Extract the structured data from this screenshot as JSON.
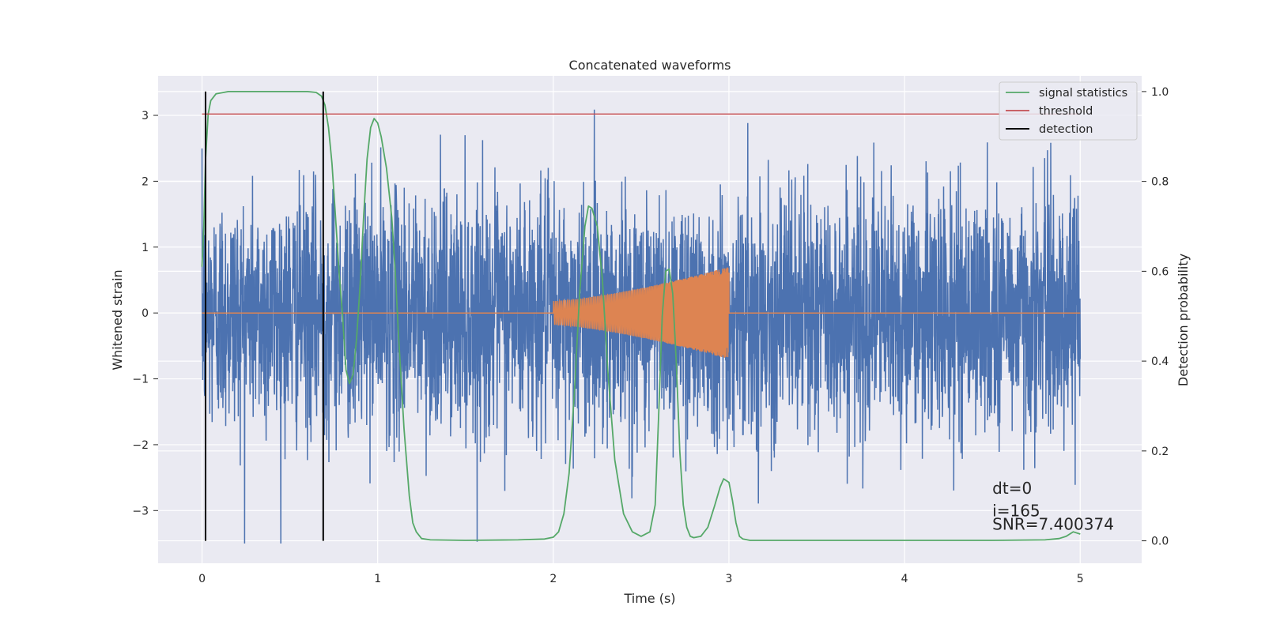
{
  "chart_data": {
    "type": "line",
    "title": "Concatenated waveforms",
    "xlabel": "Time (s)",
    "ylabel": "Whitened strain",
    "ylabel_right": "Detection probability",
    "xlim": [
      -0.25,
      5.35
    ],
    "ylim": [
      -3.8,
      3.6
    ],
    "ylim_right": [
      -0.05,
      1.035
    ],
    "xticks": [
      0,
      1,
      2,
      3,
      4,
      5
    ],
    "yticks": [
      -3,
      -2,
      -1,
      0,
      1,
      2,
      3
    ],
    "yticks_right": [
      0.0,
      0.2,
      0.4,
      0.6,
      0.8,
      1.0
    ],
    "xtick_labels": [
      "0",
      "1",
      "2",
      "3",
      "4",
      "5"
    ],
    "ytick_labels": [
      "−3",
      "−2",
      "−1",
      "0",
      "1",
      "2",
      "3"
    ],
    "ytick_labels_right": [
      "0.0",
      "0.2",
      "0.4",
      "0.6",
      "0.8",
      "1.0"
    ],
    "grid": true,
    "legend_position": "top-right",
    "colors": {
      "background": "#eaeaf2",
      "grid": "#ffffff",
      "noise": "#4c72b0",
      "signal": "#dd8452",
      "statistics": "#55a868",
      "threshold": "#c44e52",
      "detection": "#000000"
    },
    "series": [
      {
        "name": "",
        "axis": "left",
        "description_kind": "whitened noise",
        "x_range": [
          0,
          5
        ],
        "y_envelope": [
          -3.5,
          3.5
        ]
      },
      {
        "name": "",
        "axis": "left",
        "description_kind": "injected chirp",
        "x_start": 2.0,
        "x_merger": 3.0,
        "amplitude_start": 0.18,
        "amplitude_peak": 0.7
      },
      {
        "name": "signal statistics",
        "axis": "right",
        "x": [
          0,
          0.01,
          0.02,
          0.035,
          0.05,
          0.08,
          0.15,
          0.3,
          0.5,
          0.6,
          0.65,
          0.68,
          0.7,
          0.72,
          0.74,
          0.76,
          0.78,
          0.8,
          0.82,
          0.84,
          0.86,
          0.88,
          0.9,
          0.92,
          0.94,
          0.96,
          0.98,
          1.0,
          1.02,
          1.05,
          1.08,
          1.1,
          1.12,
          1.15,
          1.18,
          1.2,
          1.22,
          1.25,
          1.3,
          1.5,
          1.8,
          1.95,
          2.0,
          2.03,
          2.06,
          2.09,
          2.12,
          2.15,
          2.18,
          2.2,
          2.22,
          2.25,
          2.28,
          2.31,
          2.35,
          2.4,
          2.45,
          2.5,
          2.55,
          2.58,
          2.6,
          2.62,
          2.64,
          2.66,
          2.68,
          2.7,
          2.72,
          2.74,
          2.76,
          2.78,
          2.8,
          2.84,
          2.88,
          2.92,
          2.95,
          2.97,
          3.0,
          3.02,
          3.04,
          3.06,
          3.08,
          3.12,
          3.2,
          3.5,
          4.0,
          4.5,
          4.8,
          4.88,
          4.92,
          4.96,
          5.0
        ],
        "y": [
          0.61,
          0.7,
          0.85,
          0.95,
          0.98,
          0.995,
          1.0,
          1.0,
          1.0,
          1.0,
          0.998,
          0.99,
          0.97,
          0.92,
          0.84,
          0.72,
          0.6,
          0.5,
          0.38,
          0.35,
          0.37,
          0.45,
          0.57,
          0.72,
          0.85,
          0.92,
          0.94,
          0.93,
          0.9,
          0.83,
          0.72,
          0.6,
          0.45,
          0.25,
          0.1,
          0.04,
          0.02,
          0.005,
          0.002,
          0.001,
          0.002,
          0.004,
          0.008,
          0.02,
          0.06,
          0.15,
          0.33,
          0.55,
          0.7,
          0.745,
          0.74,
          0.7,
          0.58,
          0.38,
          0.18,
          0.06,
          0.02,
          0.01,
          0.02,
          0.08,
          0.28,
          0.5,
          0.6,
          0.605,
          0.55,
          0.4,
          0.2,
          0.08,
          0.03,
          0.01,
          0.007,
          0.01,
          0.03,
          0.08,
          0.12,
          0.138,
          0.13,
          0.09,
          0.04,
          0.01,
          0.004,
          0.001,
          0.001,
          0.001,
          0.001,
          0.001,
          0.002,
          0.005,
          0.01,
          0.02,
          0.015
        ]
      },
      {
        "name": "threshold",
        "axis": "right",
        "x": [
          0,
          5
        ],
        "y": [
          0.95,
          0.95
        ]
      },
      {
        "name": "detection",
        "axis": "right",
        "x_positions": [
          0.02,
          0.69
        ],
        "y_range": [
          0.0,
          1.0
        ]
      }
    ],
    "annotations": [
      {
        "text": "dt=0",
        "x": 4.5,
        "y": 0.105
      },
      {
        "text": "i=165",
        "x": 4.5,
        "y": 0.055
      },
      {
        "text": "SNR=7.400374",
        "x": 4.5,
        "y": 0.025
      }
    ]
  }
}
